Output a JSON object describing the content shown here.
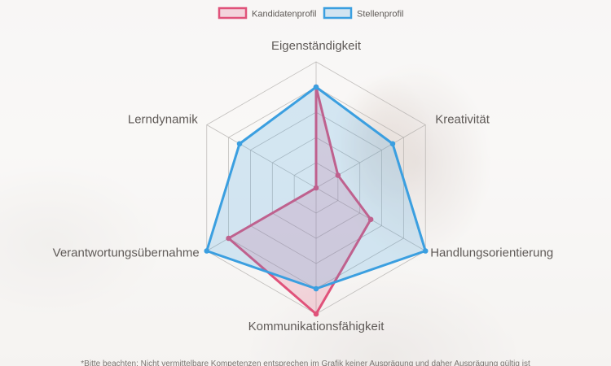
{
  "chart_data": {
    "type": "radar",
    "axes": [
      "Eigenständigkeit",
      "Kreativität",
      "Handlungsorientierung",
      "Kommunikationsfähigkeit",
      "Verantwortungsübernahme",
      "Lerndynamik"
    ],
    "range": [
      0,
      5
    ],
    "grid": true,
    "legend": "top",
    "series": [
      {
        "name": "Kandidatenprofil",
        "values": [
          4,
          1,
          2.5,
          5,
          4,
          0
        ],
        "color": "#e0527a"
      },
      {
        "name": "Stellenprofil",
        "values": [
          4,
          3.5,
          5,
          4,
          5,
          3.5
        ],
        "color": "#3b9fe0"
      }
    ]
  },
  "footnote": "*Bitte beachten: Nicht vermittelbare Kompetenzen entsprechen im Grafik keiner Ausprägung und daher Ausprägung gültig ist"
}
